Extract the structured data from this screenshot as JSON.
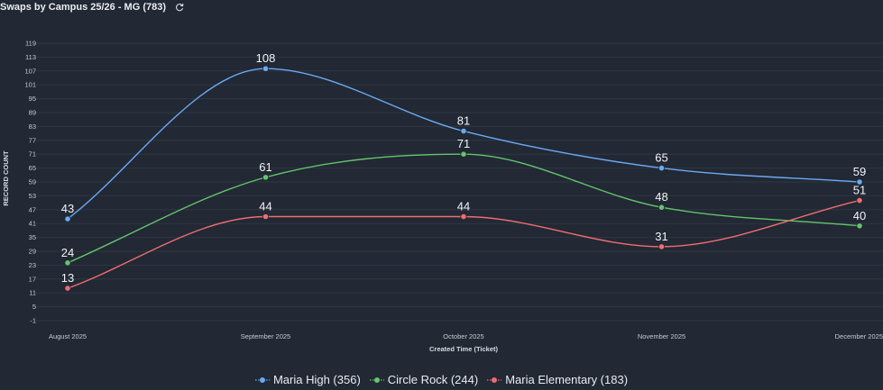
{
  "header": {
    "title": "Swaps by Campus 25/26 - MG (783)",
    "refresh_icon": "refresh-icon"
  },
  "chart_data": {
    "type": "line",
    "smooth": true,
    "xlabel": "Created Time (Ticket)",
    "ylabel": "RECORD COUNT",
    "categories": [
      "August 2025",
      "September 2025",
      "October 2025",
      "November 2025",
      "December 2025"
    ],
    "yticks": [
      -1,
      5,
      11,
      17,
      23,
      29,
      35,
      41,
      47,
      53,
      59,
      65,
      71,
      77,
      83,
      89,
      95,
      101,
      107,
      113,
      119
    ],
    "ylim": [
      -1,
      119
    ],
    "grid": true,
    "legend_position": "bottom-center",
    "series": [
      {
        "name": "Maria High",
        "legend_label": "Maria High (356)",
        "color": "#6aaaf2",
        "values": [
          43,
          108,
          81,
          65,
          59
        ]
      },
      {
        "name": "Circle Rock",
        "legend_label": "Circle Rock (244)",
        "color": "#63c56b",
        "values": [
          24,
          61,
          71,
          48,
          40
        ]
      },
      {
        "name": "Maria Elementary",
        "legend_label": "Maria Elementary (183)",
        "color": "#ee6e70",
        "values": [
          13,
          44,
          44,
          31,
          51
        ]
      }
    ]
  }
}
